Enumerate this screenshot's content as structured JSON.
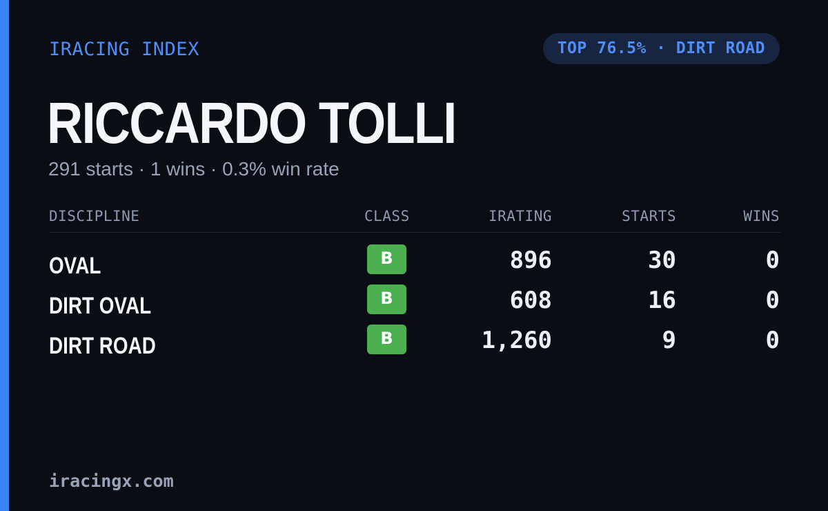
{
  "brand": "IRACING INDEX",
  "badge": "TOP 76.5% · DIRT ROAD",
  "driver": {
    "name": "RICCARDO TOLLI",
    "summary": "291 starts · 1 wins · 0.3% win rate"
  },
  "table": {
    "headers": {
      "discipline": "DISCIPLINE",
      "class": "CLASS",
      "irating": "IRATING",
      "starts": "STARTS",
      "wins": "WINS"
    },
    "rows": [
      {
        "discipline": "OVAL",
        "class": "B",
        "irating": "896",
        "starts": "30",
        "wins": "0"
      },
      {
        "discipline": "DIRT OVAL",
        "class": "B",
        "irating": "608",
        "starts": "16",
        "wins": "0"
      },
      {
        "discipline": "DIRT ROAD",
        "class": "B",
        "irating": "1,260",
        "starts": "9",
        "wins": "0"
      }
    ]
  },
  "footer": "iracingx.com",
  "colors": {
    "accent": "#3b82f6",
    "background": "#0a0d14",
    "class_b": "#4caf50"
  }
}
